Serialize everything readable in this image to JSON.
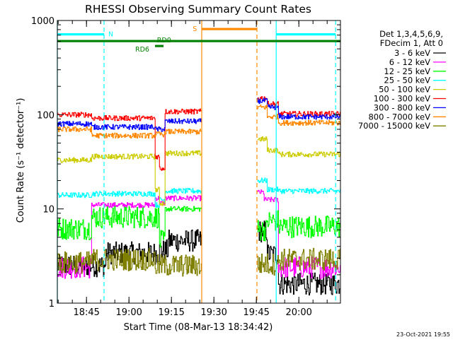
{
  "chart_data": {
    "type": "line",
    "title": "RHESSI Observing Summary Count Rates",
    "xlabel": "Start Time (08-Mar-13 18:34:42)",
    "ylabel": "Count Rate (s⁻¹ detector⁻¹)",
    "y_scale": "log",
    "ylim": [
      1,
      1000
    ],
    "xlim_minutes": [
      0,
      100
    ],
    "y_ticks": [
      {
        "value": 1,
        "label": "1"
      },
      {
        "value": 10,
        "label": "10"
      },
      {
        "value": 100,
        "label": "100"
      },
      {
        "value": 1000,
        "label": "1000"
      }
    ],
    "x_ticks": [
      {
        "value": 10.3,
        "label": "18:45"
      },
      {
        "value": 25.3,
        "label": "19:00"
      },
      {
        "value": 40.3,
        "label": "19:15"
      },
      {
        "value": 55.3,
        "label": "19:30"
      },
      {
        "value": 70.3,
        "label": "19:45"
      },
      {
        "value": 85.3,
        "label": "20:00"
      }
    ],
    "legend_header": [
      "Det 1,3,4,5,6,9,",
      "FDecim 1, Att 0"
    ],
    "legend_position": "right",
    "timestamp": "23-Oct-2021 19:55",
    "gaps": [
      [
        51,
        70.5
      ]
    ],
    "series": [
      {
        "name": "3 - 6 keV",
        "color": "#000000",
        "levels": [
          [
            0,
            2.5
          ],
          [
            17,
            3.4
          ],
          [
            36,
            3.6
          ],
          [
            39,
            4.6
          ],
          [
            70.5,
            5.8
          ],
          [
            74,
            3.3
          ],
          [
            78,
            1.6
          ]
        ]
      },
      {
        "name": "6 - 12 keV",
        "color": "#ff00ff",
        "levels": [
          [
            0,
            2.4
          ],
          [
            12,
            11
          ],
          [
            34.5,
            13
          ],
          [
            36,
            11.5
          ],
          [
            38,
            13
          ],
          [
            70.5,
            15
          ],
          [
            73,
            12.5
          ],
          [
            78,
            2.4
          ]
        ]
      },
      {
        "name": "12 - 25 keV",
        "color": "#00ff00",
        "levels": [
          [
            0,
            6.2
          ],
          [
            12,
            8.2
          ],
          [
            36,
            4.5
          ],
          [
            38,
            10
          ],
          [
            70.5,
            6
          ],
          [
            74,
            7.5
          ],
          [
            78,
            6.5
          ]
        ]
      },
      {
        "name": "25 - 50 keV",
        "color": "#00ffff",
        "levels": [
          [
            0,
            14
          ],
          [
            12,
            14.5
          ],
          [
            34.5,
            11
          ],
          [
            36,
            12.5
          ],
          [
            38,
            15.5
          ],
          [
            70.5,
            20
          ],
          [
            74,
            16
          ],
          [
            78,
            15.5
          ]
        ]
      },
      {
        "name": "50 - 100 keV",
        "color": "#cccc00",
        "levels": [
          [
            0,
            33
          ],
          [
            12,
            36
          ],
          [
            34.5,
            16
          ],
          [
            36,
            11.5
          ],
          [
            38,
            39
          ],
          [
            70.5,
            55
          ],
          [
            74,
            42
          ],
          [
            78,
            38
          ]
        ]
      },
      {
        "name": "100 - 300 keV",
        "color": "#ff0000",
        "levels": [
          [
            0,
            100
          ],
          [
            12,
            92
          ],
          [
            34.5,
            36
          ],
          [
            36,
            27
          ],
          [
            38,
            108
          ],
          [
            70.5,
            150
          ],
          [
            74,
            130
          ],
          [
            78,
            102
          ]
        ]
      },
      {
        "name": "300 - 800 keV",
        "color": "#0000ff",
        "levels": [
          [
            0,
            80
          ],
          [
            12,
            74
          ],
          [
            34.5,
            70
          ],
          [
            38,
            85
          ],
          [
            70.5,
            140
          ],
          [
            74,
            120
          ],
          [
            78,
            95
          ]
        ]
      },
      {
        "name": "800 - 7000 keV",
        "color": "#ff8800",
        "levels": [
          [
            0,
            70
          ],
          [
            12,
            60
          ],
          [
            34.5,
            62
          ],
          [
            38,
            66
          ],
          [
            70.5,
            120
          ],
          [
            74,
            95
          ],
          [
            78,
            82
          ]
        ]
      },
      {
        "name": "7000 - 15000 keV",
        "color": "#808000",
        "levels": [
          [
            0,
            2.7
          ],
          [
            12,
            2.9
          ],
          [
            34.5,
            2.5
          ],
          [
            70.5,
            2.6
          ],
          [
            78,
            2.9
          ]
        ]
      }
    ],
    "markers": {
      "vlines": [
        {
          "x": 0,
          "color": "#00ffff",
          "dash": false
        },
        {
          "x": 16.5,
          "color": "#00ffff",
          "dash": true
        },
        {
          "x": 51,
          "color": "#ff8800",
          "dash": false
        },
        {
          "x": 70.5,
          "color": "#ff8800",
          "dash": true
        },
        {
          "x": 77.3,
          "color": "#00ffff",
          "dash": false
        },
        {
          "x": 98.3,
          "color": "#00ffff",
          "dash": true
        }
      ],
      "hbars": [
        {
          "label": "N",
          "color": "#00ffff",
          "x0": 0,
          "x1": 16.5,
          "y": 48.5,
          "label_x": 18
        },
        {
          "label": "",
          "color": "#00ffff",
          "x0": 77.3,
          "x1": 98.3,
          "y": 48.5
        },
        {
          "label": "S",
          "color": "#ff8800",
          "x0": 51,
          "x1": 70.5,
          "y": 41,
          "label_x": 47.8
        },
        {
          "label": "",
          "color": "#008000",
          "x0": 0,
          "x1": 100,
          "y": 58
        },
        {
          "label": "RD0",
          "color": "#008000",
          "x0": 35,
          "x1": 40,
          "y": 58,
          "label_x": 35.2,
          "label_dy": -1
        },
        {
          "label": "RD6",
          "color": "#008000",
          "x0": 34.5,
          "x1": 37.5,
          "y": 65,
          "label_x": 27.5,
          "label_dy": 5
        }
      ]
    }
  }
}
